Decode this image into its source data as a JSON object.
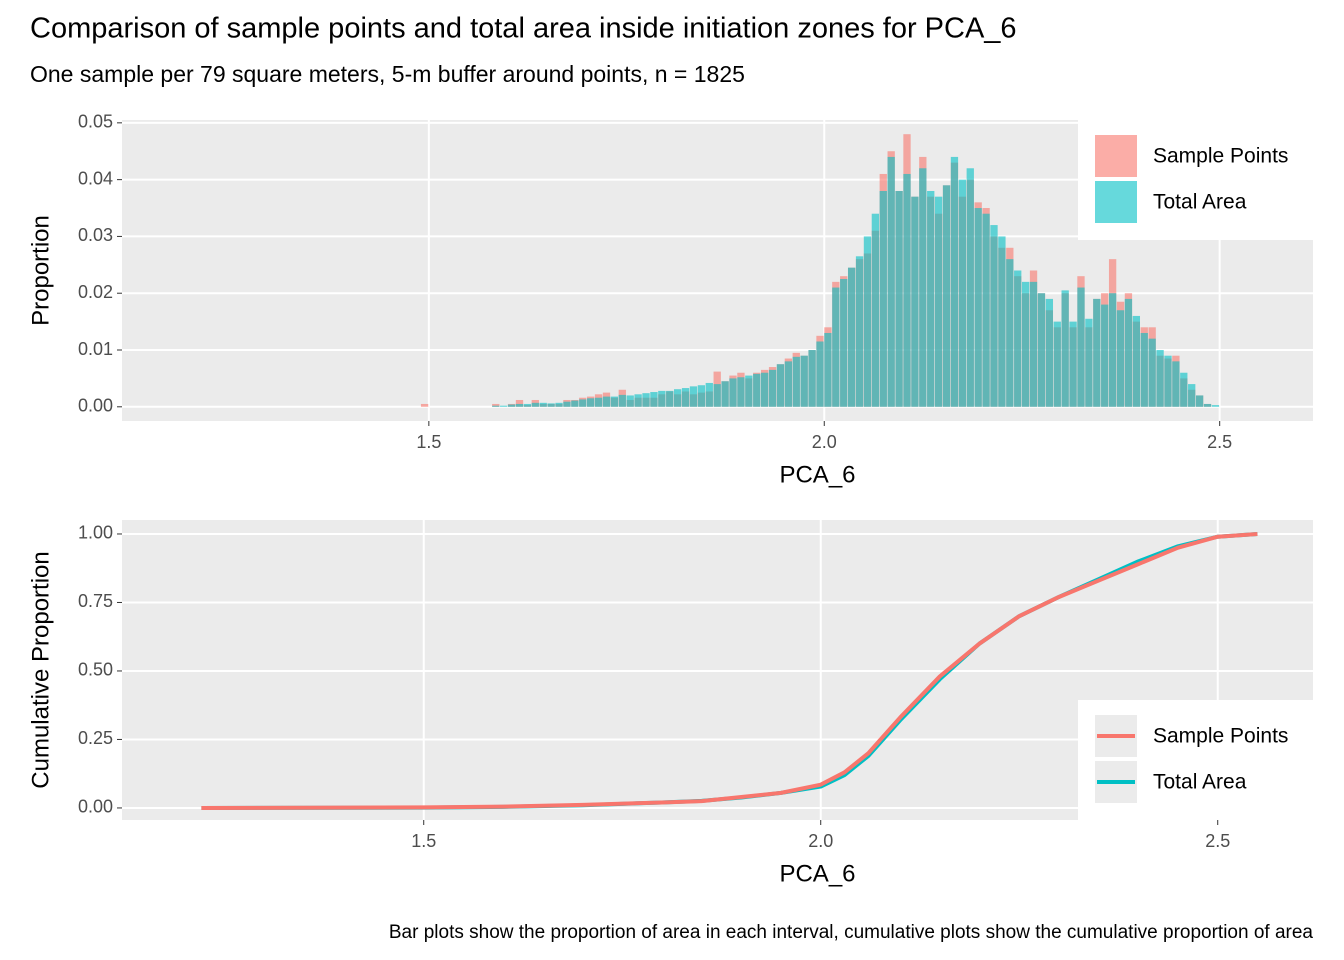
{
  "chart_data": [
    {
      "type": "histogram",
      "title": "Comparison of sample points and total area inside initiation zones for PCA_6",
      "subtitle": "One sample per 79 square meters, 5-m buffer around points, n = 1825",
      "x_label": "PCA_6",
      "y_label": "Proportion",
      "xlim": [
        1.112,
        2.618
      ],
      "xticks": [
        1.5,
        {
          "value": 2,
          "label": "2.0"
        },
        2.5
      ],
      "ylim": [
        -0.0025,
        0.0505
      ],
      "yticks": [
        {
          "value": 0,
          "label": "0.00"
        },
        0.01,
        0.02,
        0.03,
        0.04,
        0.05
      ],
      "grid": true,
      "legend": "top-right",
      "bins": [
        1.48,
        1.49,
        1.5,
        1.51,
        1.52,
        1.53,
        1.54,
        1.55,
        1.56,
        1.57,
        1.58,
        1.59,
        1.6,
        1.61,
        1.62,
        1.63,
        1.64,
        1.65,
        1.66,
        1.67,
        1.68,
        1.69,
        1.7,
        1.71,
        1.72,
        1.73,
        1.74,
        1.75,
        1.76,
        1.77,
        1.78,
        1.79,
        1.8,
        1.81,
        1.82,
        1.83,
        1.84,
        1.85,
        1.86,
        1.87,
        1.88,
        1.89,
        1.9,
        1.91,
        1.92,
        1.93,
        1.94,
        1.95,
        1.96,
        1.97,
        1.98,
        1.99,
        2.0,
        2.01,
        2.02,
        2.03,
        2.04,
        2.05,
        2.06,
        2.07,
        2.08,
        2.09,
        2.1,
        2.11,
        2.12,
        2.13,
        2.14,
        2.15,
        2.16,
        2.17,
        2.18,
        2.19,
        2.2,
        2.21,
        2.22,
        2.23,
        2.24,
        2.25,
        2.26,
        2.27,
        2.28,
        2.29,
        2.3,
        2.31,
        2.32,
        2.33,
        2.34,
        2.35,
        2.36,
        2.37,
        2.38,
        2.39,
        2.4,
        2.41,
        2.42,
        2.43,
        2.44,
        2.45,
        2.46,
        2.47,
        2.48,
        2.49,
        2.5,
        2.51,
        2.52,
        2.53,
        2.54,
        2.55,
        2.56
      ],
      "series": [
        {
          "name": "Sample Points",
          "color": "#F8766D",
          "values": [
            0,
            0.0005,
            0,
            0,
            0,
            0,
            0,
            0,
            0,
            0,
            0.0005,
            0,
            0.0005,
            0.0012,
            0.0003,
            0.0012,
            0.0005,
            0.0005,
            0.0005,
            0.0012,
            0.0012,
            0.0016,
            0.0018,
            0.0022,
            0.0025,
            0.0016,
            0.003,
            0.0012,
            0.0016,
            0.0016,
            0.0016,
            0.0022,
            0.0027,
            0.0022,
            0.0027,
            0.0022,
            0.0025,
            0.0027,
            0.0062,
            0.0045,
            0.0055,
            0.006,
            0.005,
            0.006,
            0.0065,
            0.007,
            0.0075,
            0.0085,
            0.0095,
            0.009,
            0.01,
            0.0125,
            0.014,
            0.022,
            0.023,
            0.0245,
            0.026,
            0.027,
            0.031,
            0.041,
            0.045,
            0.038,
            0.048,
            0.037,
            0.044,
            0.037,
            0.034,
            0.039,
            0.043,
            0.037,
            0.04,
            0.036,
            0.035,
            0.03,
            0.028,
            0.028,
            0.023,
            0.02,
            0.024,
            0.02,
            0.017,
            0.014,
            0.02,
            0.014,
            0.023,
            0.014,
            0.019,
            0.02,
            0.026,
            0.0185,
            0.02,
            0.015,
            0.014,
            0.014,
            0.009,
            0.0085,
            0.009,
            0.005,
            0.003,
            0.002,
            0.0005,
            0,
            0,
            0,
            0,
            0,
            0,
            0
          ]
        },
        {
          "name": "Total Area",
          "color": "#00BFC4",
          "values": [
            0,
            0,
            0,
            0,
            0,
            0,
            0,
            0,
            0,
            0,
            0.0002,
            0.0002,
            0.0004,
            0.0005,
            0.0005,
            0.0007,
            0.0007,
            0.0006,
            0.0007,
            0.0009,
            0.0011,
            0.0013,
            0.0015,
            0.0016,
            0.0018,
            0.0018,
            0.0021,
            0.002,
            0.0022,
            0.0024,
            0.0026,
            0.0028,
            0.0028,
            0.0031,
            0.0033,
            0.0036,
            0.0038,
            0.0042,
            0.004,
            0.0045,
            0.005,
            0.0052,
            0.0055,
            0.0058,
            0.006,
            0.0065,
            0.0075,
            0.008,
            0.0088,
            0.009,
            0.01,
            0.0115,
            0.013,
            0.021,
            0.0225,
            0.0245,
            0.0265,
            0.03,
            0.034,
            0.038,
            0.044,
            0.038,
            0.041,
            0.037,
            0.042,
            0.038,
            0.037,
            0.039,
            0.044,
            0.04,
            0.042,
            0.035,
            0.034,
            0.032,
            0.03,
            0.026,
            0.024,
            0.022,
            0.022,
            0.02,
            0.019,
            0.015,
            0.0205,
            0.015,
            0.021,
            0.0155,
            0.019,
            0.018,
            0.02,
            0.017,
            0.019,
            0.016,
            0.013,
            0.012,
            0.01,
            0.009,
            0.008,
            0.006,
            0.004,
            0.002,
            0.0005,
            0.0003,
            0,
            0,
            0,
            0,
            0,
            0
          ]
        }
      ]
    },
    {
      "type": "line",
      "x_label": "PCA_6",
      "y_label": "Cumulative Proportion",
      "caption": "Bar plots show the proportion of area in each interval, cumulative plots show the cumulative proportion of area",
      "xlim": [
        1.12,
        2.62
      ],
      "xticks": [
        1.5,
        {
          "value": 2,
          "label": "2.0"
        },
        2.5
      ],
      "ylim": [
        -0.044,
        1.051
      ],
      "yticks": [
        {
          "value": 0,
          "label": "0.00"
        },
        0.25,
        {
          "value": 0.5,
          "label": "0.50"
        },
        0.75,
        {
          "value": 1,
          "label": "1.00"
        }
      ],
      "grid": true,
      "legend": "bottom-right",
      "x": [
        1.22,
        1.5,
        1.6,
        1.7,
        1.8,
        1.85,
        1.9,
        1.95,
        2.0,
        2.03,
        2.06,
        2.1,
        2.15,
        2.2,
        2.25,
        2.3,
        2.35,
        2.4,
        2.45,
        2.5,
        2.55
      ],
      "series": [
        {
          "name": "Total Area",
          "color": "#00BFC4",
          "values": [
            0,
            0.001,
            0.004,
            0.01,
            0.02,
            0.026,
            0.038,
            0.055,
            0.078,
            0.12,
            0.19,
            0.32,
            0.47,
            0.6,
            0.7,
            0.77,
            0.835,
            0.9,
            0.955,
            0.99,
            1.0
          ]
        },
        {
          "name": "Sample Points",
          "color": "#F8766D",
          "values": [
            0,
            0.002,
            0.005,
            0.011,
            0.02,
            0.025,
            0.04,
            0.055,
            0.085,
            0.13,
            0.2,
            0.33,
            0.48,
            0.6,
            0.7,
            0.77,
            0.83,
            0.89,
            0.95,
            0.99,
            1.0
          ]
        }
      ]
    }
  ]
}
